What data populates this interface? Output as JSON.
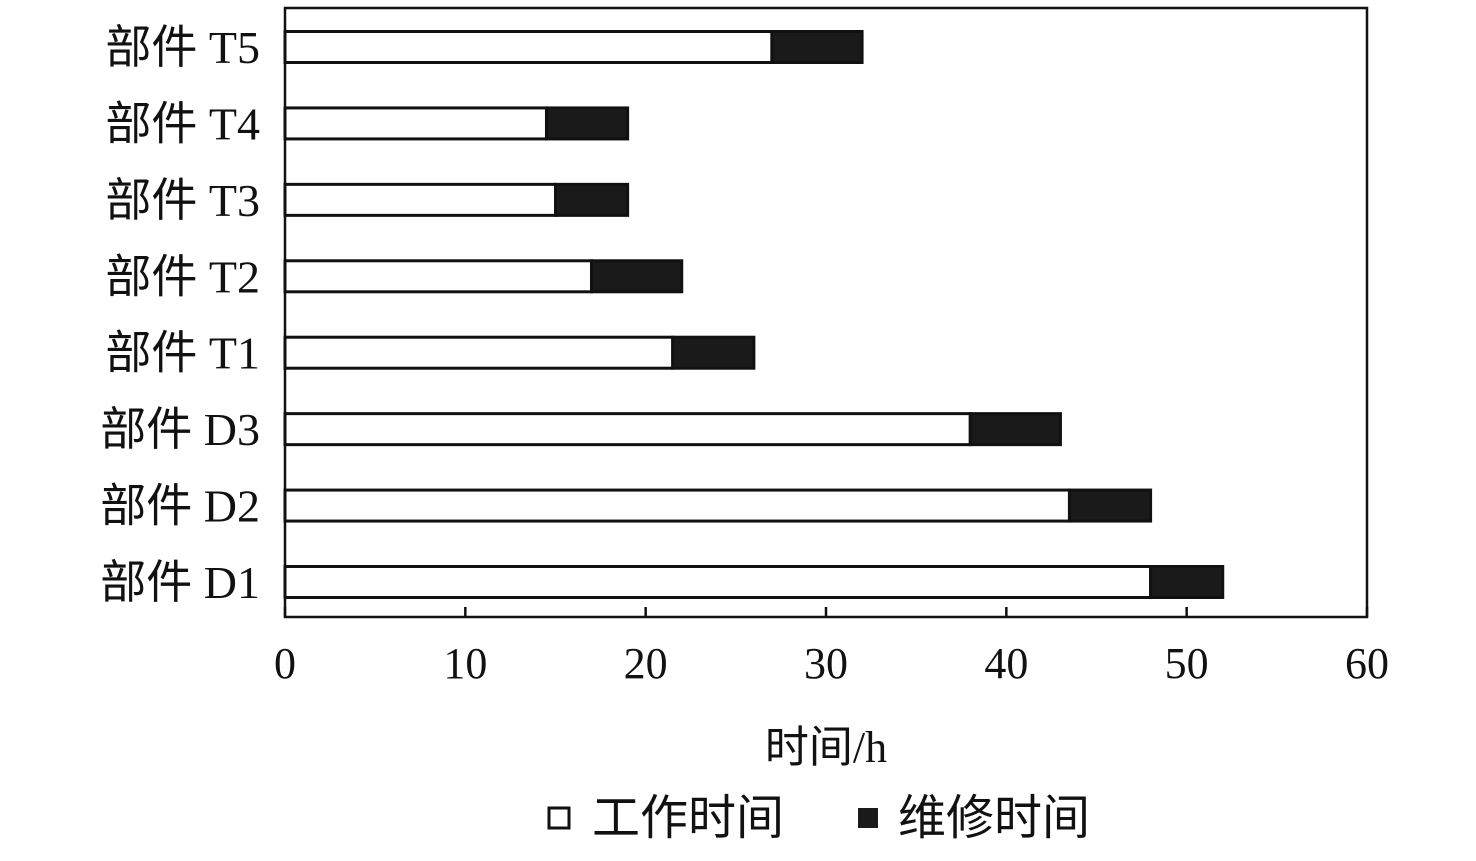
{
  "chart_data": {
    "type": "bar",
    "orientation": "horizontal",
    "stacked": true,
    "categories": [
      "部件 T5",
      "部件 T4",
      "部件 T3",
      "部件 T2",
      "部件 T1",
      "部件 D3",
      "部件 D2",
      "部件 D1"
    ],
    "series": [
      {
        "name": "工作时间",
        "values": [
          27,
          14.5,
          15,
          17,
          21.5,
          38,
          43.5,
          48
        ],
        "color": "#ffffff"
      },
      {
        "name": "维修时间",
        "values": [
          5,
          4.5,
          4,
          5,
          4.5,
          5,
          4.5,
          4
        ],
        "color": "#1a1a1a"
      }
    ],
    "xlabel": "时间/h",
    "xlim": [
      0,
      60
    ],
    "xticks": [
      0,
      10,
      20,
      30,
      40,
      50,
      60
    ],
    "grid": false,
    "legend": "bottom"
  }
}
